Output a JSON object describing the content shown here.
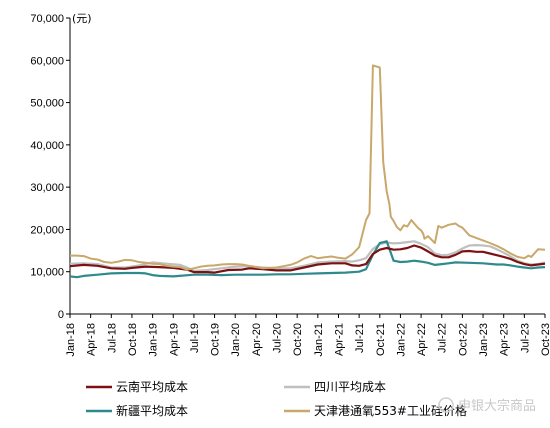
{
  "chart_data": {
    "type": "line",
    "unit_label": "(元)",
    "y_ticks": [
      "0",
      "10,000",
      "20,000",
      "30,000",
      "40,000",
      "50,000",
      "60,000",
      "70,000"
    ],
    "ylim": [
      0,
      70000
    ],
    "x_ticks": [
      "Jan-18",
      "Apr-18",
      "Jul-18",
      "Oct-18",
      "Jan-19",
      "Apr-19",
      "Jul-19",
      "Oct-19",
      "Jan-20",
      "Apr-20",
      "Jul-20",
      "Oct-20",
      "Jan-21",
      "Apr-21",
      "Jul-21",
      "Oct-21",
      "Jan-22",
      "Apr-22",
      "Jul-22",
      "Oct-22",
      "Jan-23",
      "Apr-23",
      "Jul-23",
      "Oct-23"
    ],
    "xlim": [
      0,
      69
    ],
    "legend_placement": "bottom",
    "grid": false,
    "series": [
      {
        "name": "云南平均成本",
        "color": "#7b1113",
        "points": [
          [
            0,
            11300
          ],
          [
            2,
            11600
          ],
          [
            4,
            11400
          ],
          [
            6,
            10800
          ],
          [
            8,
            10700
          ],
          [
            9,
            10900
          ],
          [
            11,
            11200
          ],
          [
            13,
            11100
          ],
          [
            15,
            10900
          ],
          [
            17,
            10500
          ],
          [
            18,
            9900
          ],
          [
            20,
            9900
          ],
          [
            21,
            9800
          ],
          [
            23,
            10400
          ],
          [
            25,
            10500
          ],
          [
            26,
            10800
          ],
          [
            28,
            10600
          ],
          [
            30,
            10300
          ],
          [
            32,
            10300
          ],
          [
            34,
            11000
          ],
          [
            36,
            11700
          ],
          [
            38,
            12000
          ],
          [
            40,
            12000
          ],
          [
            41,
            11500
          ],
          [
            42,
            11400
          ],
          [
            43,
            11800
          ],
          [
            44,
            14200
          ],
          [
            45,
            15200
          ],
          [
            46,
            15600
          ],
          [
            47,
            15200
          ],
          [
            48,
            15300
          ],
          [
            49,
            15600
          ],
          [
            50,
            16200
          ],
          [
            51,
            15700
          ],
          [
            52,
            14800
          ],
          [
            53,
            13800
          ],
          [
            54,
            13400
          ],
          [
            55,
            13400
          ],
          [
            56,
            14000
          ],
          [
            57,
            14800
          ],
          [
            58,
            14900
          ],
          [
            59,
            14700
          ],
          [
            60,
            14700
          ],
          [
            61,
            14300
          ],
          [
            62,
            13900
          ],
          [
            63,
            13500
          ],
          [
            64,
            13000
          ],
          [
            65,
            12300
          ],
          [
            66,
            11800
          ],
          [
            67,
            11500
          ],
          [
            68,
            11700
          ],
          [
            69,
            11900
          ]
        ]
      },
      {
        "name": "四川平均成本",
        "color": "#bfbfbf",
        "points": [
          [
            0,
            11900
          ],
          [
            2,
            12000
          ],
          [
            4,
            11800
          ],
          [
            6,
            11000
          ],
          [
            8,
            11000
          ],
          [
            10,
            11500
          ],
          [
            12,
            12200
          ],
          [
            14,
            11900
          ],
          [
            16,
            11600
          ],
          [
            17,
            11000
          ],
          [
            18,
            10200
          ],
          [
            20,
            10400
          ],
          [
            22,
            10800
          ],
          [
            24,
            11200
          ],
          [
            26,
            11300
          ],
          [
            28,
            11000
          ],
          [
            30,
            10800
          ],
          [
            32,
            10800
          ],
          [
            34,
            11400
          ],
          [
            36,
            12200
          ],
          [
            38,
            12400
          ],
          [
            40,
            12500
          ],
          [
            41,
            12400
          ],
          [
            42,
            12700
          ],
          [
            43,
            13200
          ],
          [
            44,
            15400
          ],
          [
            45,
            16500
          ],
          [
            46,
            16900
          ],
          [
            47,
            16700
          ],
          [
            48,
            16800
          ],
          [
            49,
            17000
          ],
          [
            50,
            17200
          ],
          [
            51,
            16600
          ],
          [
            52,
            15800
          ],
          [
            53,
            14300
          ],
          [
            54,
            13900
          ],
          [
            55,
            14000
          ],
          [
            56,
            14600
          ],
          [
            57,
            15500
          ],
          [
            58,
            16200
          ],
          [
            59,
            16300
          ],
          [
            60,
            16200
          ],
          [
            61,
            16000
          ],
          [
            62,
            15300
          ],
          [
            63,
            14500
          ],
          [
            64,
            13600
          ],
          [
            65,
            12600
          ],
          [
            66,
            12000
          ],
          [
            67,
            11700
          ],
          [
            68,
            11800
          ],
          [
            69,
            12200
          ]
        ]
      },
      {
        "name": "新疆平均成本",
        "color": "#2f8a8e",
        "points": [
          [
            0,
            8900
          ],
          [
            1,
            8700
          ],
          [
            2,
            9000
          ],
          [
            4,
            9300
          ],
          [
            6,
            9600
          ],
          [
            8,
            9700
          ],
          [
            10,
            9700
          ],
          [
            11,
            9600
          ],
          [
            12,
            9200
          ],
          [
            13,
            9000
          ],
          [
            15,
            8900
          ],
          [
            18,
            9300
          ],
          [
            20,
            9300
          ],
          [
            22,
            9200
          ],
          [
            24,
            9300
          ],
          [
            28,
            9300
          ],
          [
            30,
            9400
          ],
          [
            32,
            9400
          ],
          [
            34,
            9500
          ],
          [
            36,
            9600
          ],
          [
            38,
            9700
          ],
          [
            40,
            9800
          ],
          [
            42,
            10000
          ],
          [
            43,
            10600
          ],
          [
            44,
            14000
          ],
          [
            45,
            16800
          ],
          [
            46,
            17200
          ],
          [
            47,
            12600
          ],
          [
            48,
            12300
          ],
          [
            49,
            12400
          ],
          [
            50,
            12600
          ],
          [
            51,
            12400
          ],
          [
            52,
            12100
          ],
          [
            53,
            11600
          ],
          [
            54,
            11800
          ],
          [
            55,
            12000
          ],
          [
            56,
            12200
          ],
          [
            58,
            12100
          ],
          [
            60,
            12000
          ],
          [
            62,
            11700
          ],
          [
            63,
            11700
          ],
          [
            64,
            11500
          ],
          [
            65,
            11200
          ],
          [
            66,
            11000
          ],
          [
            67,
            10800
          ],
          [
            68,
            11000
          ],
          [
            69,
            11100
          ]
        ]
      },
      {
        "name": "天津港通氧553#工业硅价格",
        "color": "#c8a86b",
        "points": [
          [
            0,
            13800
          ],
          [
            1,
            13800
          ],
          [
            2,
            13700
          ],
          [
            3,
            13100
          ],
          [
            4,
            12900
          ],
          [
            5,
            12300
          ],
          [
            6,
            12100
          ],
          [
            7,
            12400
          ],
          [
            8,
            12800
          ],
          [
            9,
            12700
          ],
          [
            10,
            12300
          ],
          [
            11,
            12100
          ],
          [
            12,
            11900
          ],
          [
            13,
            11800
          ],
          [
            14,
            11400
          ],
          [
            15,
            11200
          ],
          [
            16,
            11100
          ],
          [
            17,
            10500
          ],
          [
            18,
            10800
          ],
          [
            19,
            11200
          ],
          [
            20,
            11400
          ],
          [
            21,
            11500
          ],
          [
            22,
            11700
          ],
          [
            23,
            11800
          ],
          [
            24,
            11800
          ],
          [
            25,
            11700
          ],
          [
            26,
            11400
          ],
          [
            27,
            11100
          ],
          [
            28,
            10800
          ],
          [
            29,
            10900
          ],
          [
            30,
            11000
          ],
          [
            31,
            11300
          ],
          [
            32,
            11600
          ],
          [
            33,
            12200
          ],
          [
            34,
            13100
          ],
          [
            35,
            13700
          ],
          [
            36,
            13200
          ],
          [
            37,
            13400
          ],
          [
            38,
            13600
          ],
          [
            39,
            13300
          ],
          [
            40,
            13100
          ],
          [
            41,
            14100
          ],
          [
            42,
            15800
          ],
          [
            43,
            22200
          ],
          [
            43.5,
            23800
          ],
          [
            44,
            58800
          ],
          [
            45,
            58300
          ],
          [
            45.5,
            36000
          ],
          [
            46,
            29000
          ],
          [
            46.4,
            26000
          ],
          [
            46.6,
            23000
          ],
          [
            47,
            22000
          ],
          [
            47.5,
            20500
          ],
          [
            48,
            19800
          ],
          [
            48.5,
            21000
          ],
          [
            49,
            20700
          ],
          [
            49.6,
            22200
          ],
          [
            50,
            21400
          ],
          [
            50.6,
            20300
          ],
          [
            51,
            19800
          ],
          [
            51.3,
            19000
          ],
          [
            51.5,
            17800
          ],
          [
            52,
            18400
          ],
          [
            52.5,
            17600
          ],
          [
            53,
            16800
          ],
          [
            53.5,
            20800
          ],
          [
            54,
            20400
          ],
          [
            55,
            21100
          ],
          [
            56,
            21400
          ],
          [
            56.5,
            20800
          ],
          [
            57,
            20400
          ],
          [
            58,
            18600
          ],
          [
            59,
            18000
          ],
          [
            60,
            17400
          ],
          [
            61,
            16800
          ],
          [
            62,
            16100
          ],
          [
            63,
            15300
          ],
          [
            64,
            14300
          ],
          [
            65,
            13500
          ],
          [
            66,
            13200
          ],
          [
            66.6,
            13800
          ],
          [
            67,
            13500
          ],
          [
            68,
            15300
          ],
          [
            69,
            15200
          ]
        ]
      }
    ]
  },
  "watermark": "申银大宗商品"
}
